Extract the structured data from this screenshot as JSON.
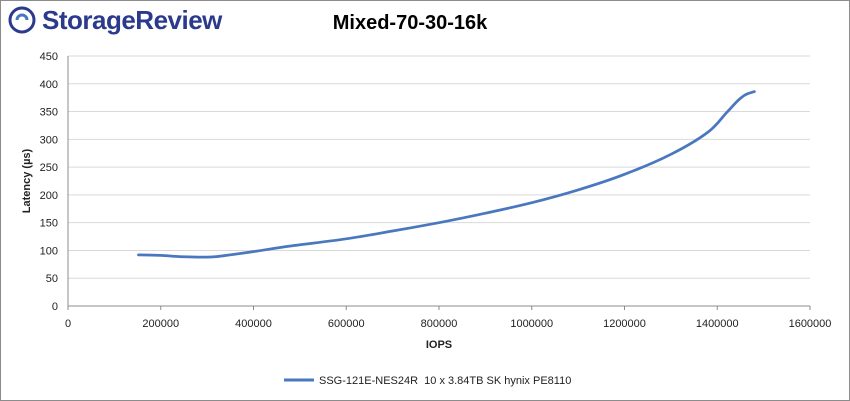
{
  "logo": {
    "text": "StorageReview"
  },
  "colors": {
    "series": "#4a78be",
    "grid": "#d9d9d9",
    "axis": "#8c8c8c",
    "logo": "#2b3a8c"
  },
  "chart_data": {
    "type": "line",
    "title": "Mixed-70-30-16k",
    "xlabel": "IOPS",
    "ylabel": "Latency (µs)",
    "xlim": [
      0,
      1600000
    ],
    "ylim": [
      0,
      450
    ],
    "xticks": [
      0,
      200000,
      400000,
      600000,
      800000,
      1000000,
      1200000,
      1400000,
      1600000
    ],
    "yticks": [
      0,
      50,
      100,
      150,
      200,
      250,
      300,
      350,
      400,
      450
    ],
    "grid": true,
    "legend_position": "bottom",
    "series": [
      {
        "name": "SSG-121E-NES24R  10 x 3.84TB SK hynix PE8110",
        "x": [
          152000,
          200000,
          240000,
          285000,
          320000,
          400000,
          480000,
          600000,
          700000,
          800000,
          900000,
          1000000,
          1100000,
          1200000,
          1300000,
          1380000,
          1420000,
          1445000,
          1460000,
          1480000
        ],
        "y": [
          92,
          91,
          89,
          88,
          89,
          98,
          108,
          121,
          135,
          150,
          167,
          186,
          209,
          237,
          273,
          313,
          348,
          370,
          380,
          386
        ]
      }
    ]
  }
}
